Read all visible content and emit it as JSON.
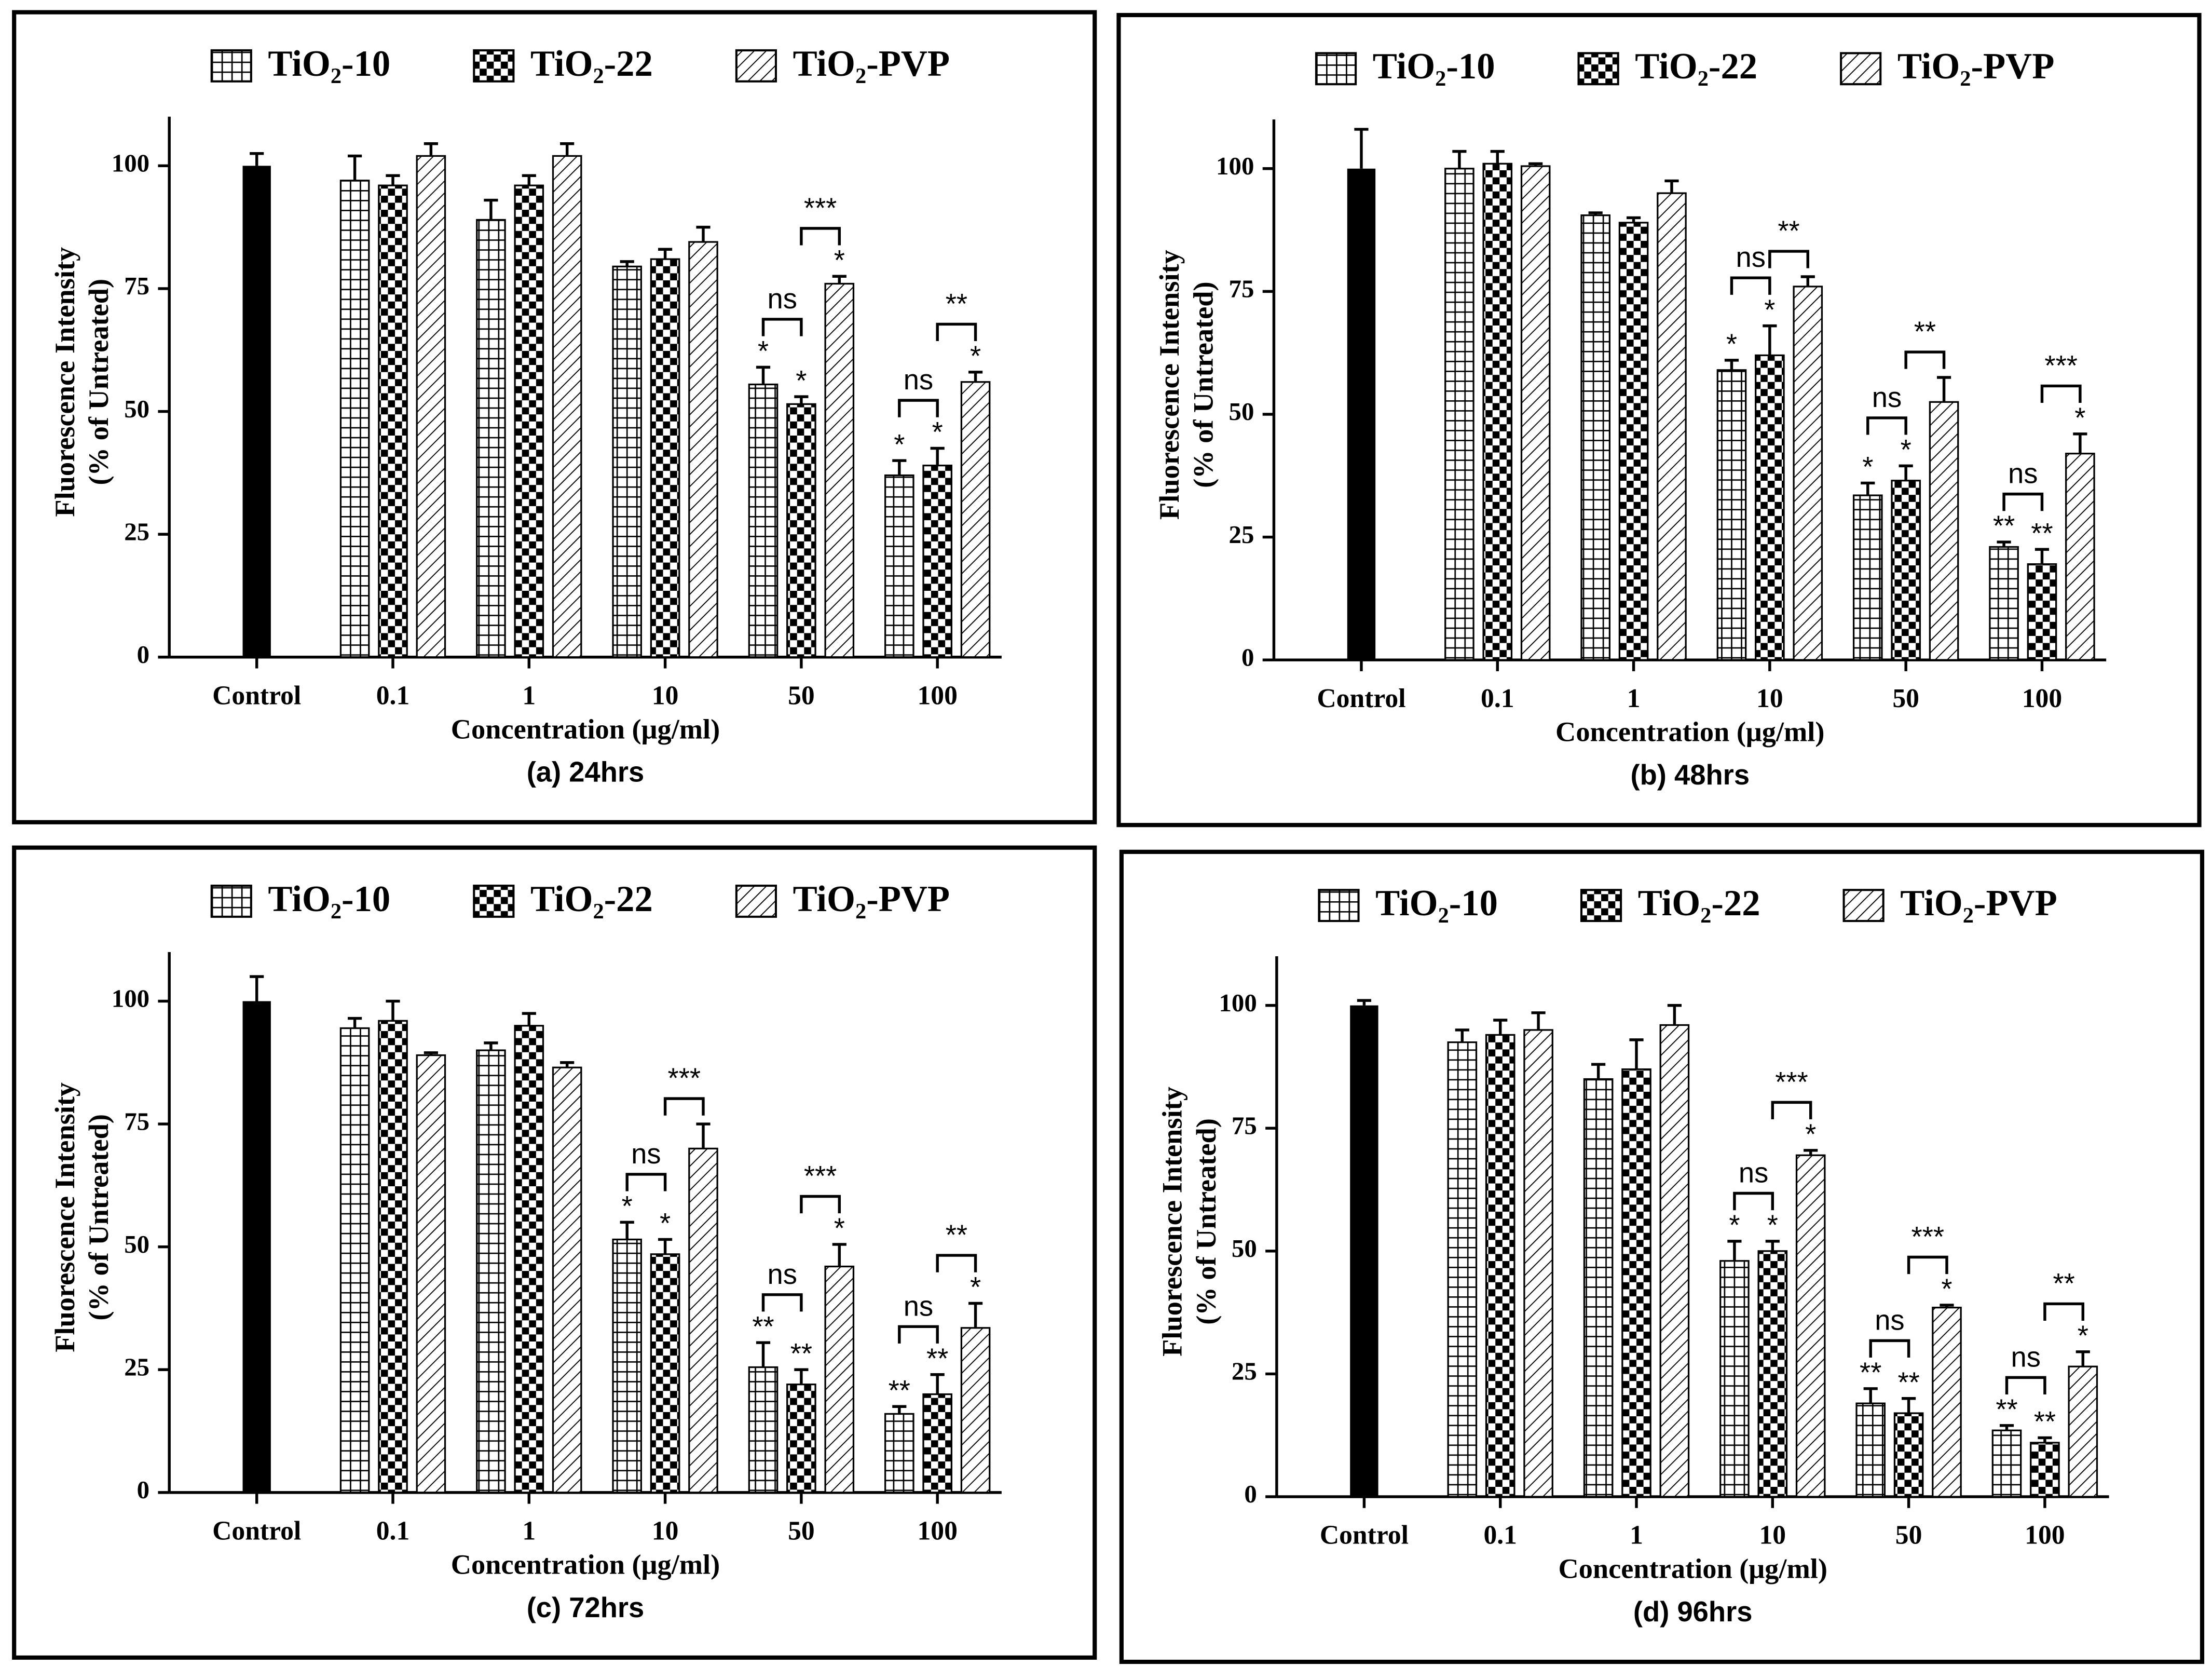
{
  "chart_data": [
    {
      "type": "bar",
      "caption": "(a) 24hrs",
      "ylabel": [
        "Fluorescence Intensity",
        "(% of Untreated)"
      ],
      "xlabel": "Concentration (μg/ml)",
      "categories": [
        "Control",
        "0.1",
        "1",
        "10",
        "50",
        "100"
      ],
      "ylim": [
        0,
        110
      ],
      "yticks": [
        0,
        25,
        50,
        75,
        100
      ],
      "control": {
        "value": 100,
        "error": 2.5,
        "color": "#000000"
      },
      "series": [
        {
          "name": "TiO₂-10",
          "pattern": "grid",
          "values": [
            null,
            97,
            89,
            79.5,
            55.5,
            37
          ],
          "errors": [
            null,
            5,
            4,
            1,
            3.5,
            3
          ],
          "annotations": [
            null,
            null,
            null,
            null,
            "*",
            "*"
          ]
        },
        {
          "name": "TiO₂-22",
          "pattern": "checker",
          "values": [
            null,
            96,
            96,
            81,
            51.5,
            39
          ],
          "errors": [
            null,
            2,
            2,
            2,
            1.5,
            3.5
          ],
          "annotations": [
            null,
            null,
            null,
            null,
            "*",
            "*"
          ]
        },
        {
          "name": "TiO₂-PVP",
          "pattern": "hatch",
          "values": [
            null,
            102,
            102,
            84.5,
            76,
            56
          ],
          "errors": [
            null,
            2.5,
            2.5,
            3,
            1.5,
            2
          ],
          "annotations": [
            null,
            null,
            null,
            null,
            "*",
            "*"
          ]
        }
      ],
      "comparisons": [
        {
          "category": 4,
          "from": 0,
          "to": 1,
          "label": "ns"
        },
        {
          "category": 4,
          "from": 1,
          "to": 2,
          "label": "***"
        },
        {
          "category": 5,
          "from": 0,
          "to": 1,
          "label": "ns"
        },
        {
          "category": 5,
          "from": 1,
          "to": 2,
          "label": "**"
        }
      ]
    },
    {
      "type": "bar",
      "caption": "(b) 48hrs",
      "ylabel": [
        "Fluorescence Intensity",
        "(% of Untreated)"
      ],
      "xlabel": "Concentration (μg/ml)",
      "categories": [
        "Control",
        "0.1",
        "1",
        "10",
        "50",
        "100"
      ],
      "ylim": [
        0,
        110
      ],
      "yticks": [
        0,
        25,
        50,
        75,
        100
      ],
      "control": {
        "value": 100,
        "error": 8,
        "color": "#000000"
      },
      "series": [
        {
          "name": "TiO₂-10",
          "pattern": "grid",
          "values": [
            null,
            100,
            90.5,
            59,
            33.5,
            23
          ],
          "errors": [
            null,
            3.5,
            0.5,
            2,
            2.5,
            1
          ],
          "annotations": [
            null,
            null,
            null,
            "*",
            "*",
            "**"
          ]
        },
        {
          "name": "TiO₂-22",
          "pattern": "checker",
          "values": [
            null,
            101,
            89,
            62,
            36.5,
            19.5
          ],
          "errors": [
            null,
            2.5,
            1,
            6,
            3,
            3
          ],
          "annotations": [
            null,
            null,
            null,
            "*",
            "*",
            "**"
          ]
        },
        {
          "name": "TiO₂-PVP",
          "pattern": "hatch",
          "values": [
            null,
            100.5,
            95,
            76,
            52.5,
            42
          ],
          "errors": [
            null,
            0.5,
            2.5,
            2,
            5,
            4
          ],
          "annotations": [
            null,
            null,
            null,
            null,
            null,
            "*"
          ]
        }
      ],
      "comparisons": [
        {
          "category": 3,
          "from": 0,
          "to": 1,
          "label": "ns"
        },
        {
          "category": 3,
          "from": 1,
          "to": 2,
          "label": "**"
        },
        {
          "category": 4,
          "from": 0,
          "to": 1,
          "label": "ns"
        },
        {
          "category": 4,
          "from": 1,
          "to": 2,
          "label": "**"
        },
        {
          "category": 5,
          "from": 0,
          "to": 1,
          "label": "ns"
        },
        {
          "category": 5,
          "from": 1,
          "to": 2,
          "label": "***"
        }
      ]
    },
    {
      "type": "bar",
      "caption": "(c) 72hrs",
      "ylabel": [
        "Fluorescence Intensity",
        "(% of Untreated)"
      ],
      "xlabel": "Concentration (μg/ml)",
      "categories": [
        "Control",
        "0.1",
        "1",
        "10",
        "50",
        "100"
      ],
      "ylim": [
        0,
        110
      ],
      "yticks": [
        0,
        25,
        50,
        75,
        100
      ],
      "control": {
        "value": 100,
        "error": 5,
        "color": "#000000"
      },
      "series": [
        {
          "name": "TiO₂-10",
          "pattern": "grid",
          "values": [
            null,
            94.5,
            90,
            51.5,
            25.5,
            16
          ],
          "errors": [
            null,
            2,
            1.5,
            3.5,
            5,
            1.5
          ],
          "annotations": [
            null,
            null,
            null,
            "*",
            "**",
            "**"
          ]
        },
        {
          "name": "TiO₂-22",
          "pattern": "checker",
          "values": [
            null,
            96,
            95,
            48.5,
            22,
            20
          ],
          "errors": [
            null,
            4,
            2.5,
            3,
            3,
            4
          ],
          "annotations": [
            null,
            null,
            null,
            "*",
            "**",
            "**"
          ]
        },
        {
          "name": "TiO₂-PVP",
          "pattern": "hatch",
          "values": [
            null,
            89,
            86.5,
            70,
            46,
            33.5
          ],
          "errors": [
            null,
            0.5,
            1,
            5,
            4.5,
            5
          ],
          "annotations": [
            null,
            null,
            null,
            null,
            "*",
            "*"
          ]
        }
      ],
      "comparisons": [
        {
          "category": 3,
          "from": 0,
          "to": 1,
          "label": "ns"
        },
        {
          "category": 3,
          "from": 1,
          "to": 2,
          "label": "***"
        },
        {
          "category": 4,
          "from": 0,
          "to": 1,
          "label": "ns"
        },
        {
          "category": 4,
          "from": 1,
          "to": 2,
          "label": "***"
        },
        {
          "category": 5,
          "from": 0,
          "to": 1,
          "label": "ns"
        },
        {
          "category": 5,
          "from": 1,
          "to": 2,
          "label": "**"
        }
      ]
    },
    {
      "type": "bar",
      "caption": "(d) 96hrs",
      "ylabel": [
        "Fluorescence Intensity",
        "(% of Untreated)"
      ],
      "xlabel": "Concentration (μg/ml)",
      "categories": [
        "Control",
        "0.1",
        "1",
        "10",
        "50",
        "100"
      ],
      "ylim": [
        0,
        110
      ],
      "yticks": [
        0,
        25,
        50,
        75,
        100
      ],
      "control": {
        "value": 100,
        "error": 1,
        "color": "#000000"
      },
      "series": [
        {
          "name": "TiO₂-10",
          "pattern": "grid",
          "values": [
            null,
            92.5,
            85,
            48,
            19,
            13.5
          ],
          "errors": [
            null,
            2.5,
            3,
            4,
            3,
            1
          ],
          "annotations": [
            null,
            null,
            null,
            "*",
            "**",
            "**"
          ]
        },
        {
          "name": "TiO₂-22",
          "pattern": "checker",
          "values": [
            null,
            94,
            87,
            50,
            17,
            11
          ],
          "errors": [
            null,
            3,
            6,
            2,
            3,
            1
          ],
          "annotations": [
            null,
            null,
            null,
            "*",
            "**",
            "**"
          ]
        },
        {
          "name": "TiO₂-PVP",
          "pattern": "hatch",
          "values": [
            null,
            95,
            96,
            69.5,
            38.5,
            26.5
          ],
          "errors": [
            null,
            3.5,
            4,
            1,
            0.5,
            3
          ],
          "annotations": [
            null,
            null,
            null,
            "*",
            "*",
            "*"
          ]
        }
      ],
      "comparisons": [
        {
          "category": 3,
          "from": 0,
          "to": 1,
          "label": "ns"
        },
        {
          "category": 3,
          "from": 1,
          "to": 2,
          "label": "***"
        },
        {
          "category": 4,
          "from": 0,
          "to": 1,
          "label": "ns"
        },
        {
          "category": 4,
          "from": 1,
          "to": 2,
          "label": "***"
        },
        {
          "category": 5,
          "from": 0,
          "to": 1,
          "label": "ns"
        },
        {
          "category": 5,
          "from": 1,
          "to": 2,
          "label": "**"
        }
      ]
    }
  ]
}
